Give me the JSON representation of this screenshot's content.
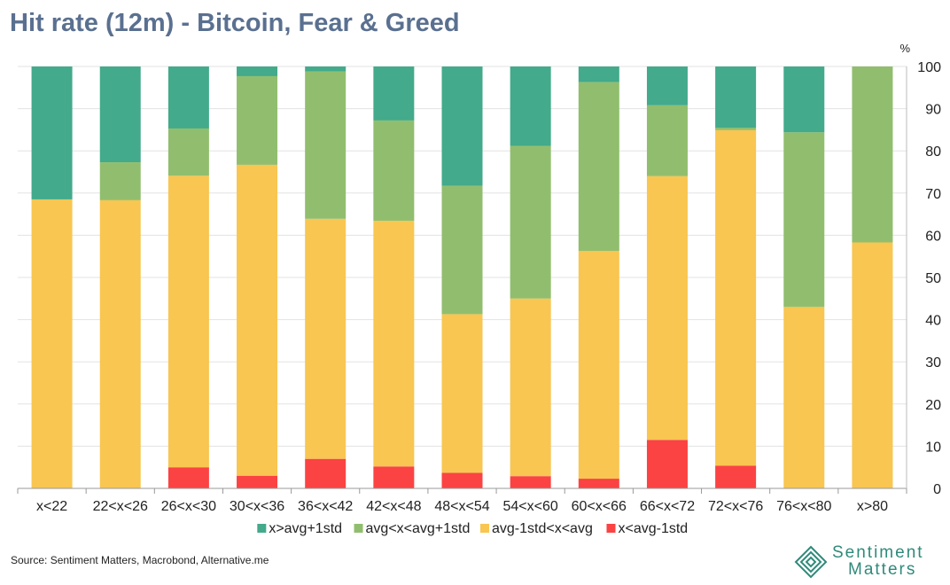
{
  "chart_data": {
    "type": "bar",
    "stacked": true,
    "title": "Hit rate (12m) - Bitcoin, Fear & Greed",
    "ylabel": "%",
    "ylim": [
      0,
      100
    ],
    "yticks": [
      0,
      10,
      20,
      30,
      40,
      50,
      60,
      70,
      80,
      90,
      100
    ],
    "categories": [
      "x<22",
      "22<x<26",
      "26<x<30",
      "30<x<36",
      "36<x<42",
      "42<x<48",
      "48<x<54",
      "54<x<60",
      "60<x<66",
      "66<x<72",
      "72<x<76",
      "76<x<80",
      "x>80"
    ],
    "series": [
      {
        "name": "x<avg-1std",
        "color": "#fb4343",
        "values": [
          0,
          0,
          5,
          3,
          7,
          5.2,
          3.7,
          2.9,
          2.3,
          11.5,
          5.4,
          0,
          0
        ]
      },
      {
        "name": "avg-1std<x<avg",
        "color": "#f8c651",
        "values": [
          68.5,
          68.3,
          69.1,
          73.7,
          56.9,
          58.2,
          37.6,
          42.1,
          54.0,
          62.5,
          79.5,
          43.0,
          58.3
        ]
      },
      {
        "name": "avg<x<avg+1std",
        "color": "#91be6e",
        "values": [
          0,
          9.0,
          11.2,
          21.0,
          34.9,
          23.8,
          30.4,
          36.2,
          40.0,
          16.8,
          0.6,
          41.4,
          41.7
        ]
      },
      {
        "name": "x>avg+1std",
        "color": "#43aa8b",
        "values": [
          31.5,
          22.7,
          14.7,
          2.3,
          1.2,
          12.8,
          28.3,
          18.8,
          3.7,
          9.2,
          14.5,
          15.6,
          0
        ]
      }
    ],
    "legend_order": [
      "x>avg+1std",
      "avg<x<avg+1std",
      "avg-1std<x<avg",
      "x<avg-1std"
    ],
    "legend_position": "bottom",
    "grid": true
  },
  "source": "Source: Sentiment Matters, Macrobond, Alternative.me",
  "logo": {
    "line1": "Sentiment",
    "line2": "Matters"
  }
}
